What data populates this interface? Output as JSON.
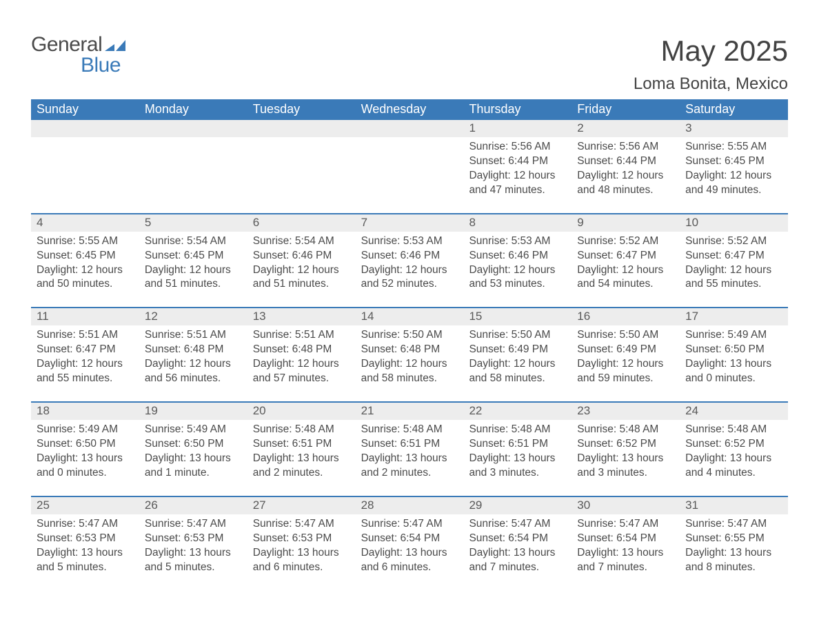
{
  "brand": {
    "name_part1": "General",
    "name_part2": "Blue"
  },
  "title": "May 2025",
  "location": "Loma Bonita, Mexico",
  "colors": {
    "header_bg": "#3a7ab8",
    "header_text": "#ffffff",
    "daynum_bg": "#ededed",
    "text": "#4a4a4a",
    "rule": "#3a7ab8",
    "background": "#ffffff"
  },
  "fonts": {
    "title_size_pt": 32,
    "location_size_pt": 18,
    "weekday_size_pt": 14,
    "body_size_pt": 12
  },
  "weekdays": [
    "Sunday",
    "Monday",
    "Tuesday",
    "Wednesday",
    "Thursday",
    "Friday",
    "Saturday"
  ],
  "weeks": [
    [
      {
        "empty": true
      },
      {
        "empty": true
      },
      {
        "empty": true
      },
      {
        "empty": true
      },
      {
        "day": "1",
        "sunrise": "Sunrise: 5:56 AM",
        "sunset": "Sunset: 6:44 PM",
        "daylight1": "Daylight: 12 hours",
        "daylight2": "and 47 minutes."
      },
      {
        "day": "2",
        "sunrise": "Sunrise: 5:56 AM",
        "sunset": "Sunset: 6:44 PM",
        "daylight1": "Daylight: 12 hours",
        "daylight2": "and 48 minutes."
      },
      {
        "day": "3",
        "sunrise": "Sunrise: 5:55 AM",
        "sunset": "Sunset: 6:45 PM",
        "daylight1": "Daylight: 12 hours",
        "daylight2": "and 49 minutes."
      }
    ],
    [
      {
        "day": "4",
        "sunrise": "Sunrise: 5:55 AM",
        "sunset": "Sunset: 6:45 PM",
        "daylight1": "Daylight: 12 hours",
        "daylight2": "and 50 minutes."
      },
      {
        "day": "5",
        "sunrise": "Sunrise: 5:54 AM",
        "sunset": "Sunset: 6:45 PM",
        "daylight1": "Daylight: 12 hours",
        "daylight2": "and 51 minutes."
      },
      {
        "day": "6",
        "sunrise": "Sunrise: 5:54 AM",
        "sunset": "Sunset: 6:46 PM",
        "daylight1": "Daylight: 12 hours",
        "daylight2": "and 51 minutes."
      },
      {
        "day": "7",
        "sunrise": "Sunrise: 5:53 AM",
        "sunset": "Sunset: 6:46 PM",
        "daylight1": "Daylight: 12 hours",
        "daylight2": "and 52 minutes."
      },
      {
        "day": "8",
        "sunrise": "Sunrise: 5:53 AM",
        "sunset": "Sunset: 6:46 PM",
        "daylight1": "Daylight: 12 hours",
        "daylight2": "and 53 minutes."
      },
      {
        "day": "9",
        "sunrise": "Sunrise: 5:52 AM",
        "sunset": "Sunset: 6:47 PM",
        "daylight1": "Daylight: 12 hours",
        "daylight2": "and 54 minutes."
      },
      {
        "day": "10",
        "sunrise": "Sunrise: 5:52 AM",
        "sunset": "Sunset: 6:47 PM",
        "daylight1": "Daylight: 12 hours",
        "daylight2": "and 55 minutes."
      }
    ],
    [
      {
        "day": "11",
        "sunrise": "Sunrise: 5:51 AM",
        "sunset": "Sunset: 6:47 PM",
        "daylight1": "Daylight: 12 hours",
        "daylight2": "and 55 minutes."
      },
      {
        "day": "12",
        "sunrise": "Sunrise: 5:51 AM",
        "sunset": "Sunset: 6:48 PM",
        "daylight1": "Daylight: 12 hours",
        "daylight2": "and 56 minutes."
      },
      {
        "day": "13",
        "sunrise": "Sunrise: 5:51 AM",
        "sunset": "Sunset: 6:48 PM",
        "daylight1": "Daylight: 12 hours",
        "daylight2": "and 57 minutes."
      },
      {
        "day": "14",
        "sunrise": "Sunrise: 5:50 AM",
        "sunset": "Sunset: 6:48 PM",
        "daylight1": "Daylight: 12 hours",
        "daylight2": "and 58 minutes."
      },
      {
        "day": "15",
        "sunrise": "Sunrise: 5:50 AM",
        "sunset": "Sunset: 6:49 PM",
        "daylight1": "Daylight: 12 hours",
        "daylight2": "and 58 minutes."
      },
      {
        "day": "16",
        "sunrise": "Sunrise: 5:50 AM",
        "sunset": "Sunset: 6:49 PM",
        "daylight1": "Daylight: 12 hours",
        "daylight2": "and 59 minutes."
      },
      {
        "day": "17",
        "sunrise": "Sunrise: 5:49 AM",
        "sunset": "Sunset: 6:50 PM",
        "daylight1": "Daylight: 13 hours",
        "daylight2": "and 0 minutes."
      }
    ],
    [
      {
        "day": "18",
        "sunrise": "Sunrise: 5:49 AM",
        "sunset": "Sunset: 6:50 PM",
        "daylight1": "Daylight: 13 hours",
        "daylight2": "and 0 minutes."
      },
      {
        "day": "19",
        "sunrise": "Sunrise: 5:49 AM",
        "sunset": "Sunset: 6:50 PM",
        "daylight1": "Daylight: 13 hours",
        "daylight2": "and 1 minute."
      },
      {
        "day": "20",
        "sunrise": "Sunrise: 5:48 AM",
        "sunset": "Sunset: 6:51 PM",
        "daylight1": "Daylight: 13 hours",
        "daylight2": "and 2 minutes."
      },
      {
        "day": "21",
        "sunrise": "Sunrise: 5:48 AM",
        "sunset": "Sunset: 6:51 PM",
        "daylight1": "Daylight: 13 hours",
        "daylight2": "and 2 minutes."
      },
      {
        "day": "22",
        "sunrise": "Sunrise: 5:48 AM",
        "sunset": "Sunset: 6:51 PM",
        "daylight1": "Daylight: 13 hours",
        "daylight2": "and 3 minutes."
      },
      {
        "day": "23",
        "sunrise": "Sunrise: 5:48 AM",
        "sunset": "Sunset: 6:52 PM",
        "daylight1": "Daylight: 13 hours",
        "daylight2": "and 3 minutes."
      },
      {
        "day": "24",
        "sunrise": "Sunrise: 5:48 AM",
        "sunset": "Sunset: 6:52 PM",
        "daylight1": "Daylight: 13 hours",
        "daylight2": "and 4 minutes."
      }
    ],
    [
      {
        "day": "25",
        "sunrise": "Sunrise: 5:47 AM",
        "sunset": "Sunset: 6:53 PM",
        "daylight1": "Daylight: 13 hours",
        "daylight2": "and 5 minutes."
      },
      {
        "day": "26",
        "sunrise": "Sunrise: 5:47 AM",
        "sunset": "Sunset: 6:53 PM",
        "daylight1": "Daylight: 13 hours",
        "daylight2": "and 5 minutes."
      },
      {
        "day": "27",
        "sunrise": "Sunrise: 5:47 AM",
        "sunset": "Sunset: 6:53 PM",
        "daylight1": "Daylight: 13 hours",
        "daylight2": "and 6 minutes."
      },
      {
        "day": "28",
        "sunrise": "Sunrise: 5:47 AM",
        "sunset": "Sunset: 6:54 PM",
        "daylight1": "Daylight: 13 hours",
        "daylight2": "and 6 minutes."
      },
      {
        "day": "29",
        "sunrise": "Sunrise: 5:47 AM",
        "sunset": "Sunset: 6:54 PM",
        "daylight1": "Daylight: 13 hours",
        "daylight2": "and 7 minutes."
      },
      {
        "day": "30",
        "sunrise": "Sunrise: 5:47 AM",
        "sunset": "Sunset: 6:54 PM",
        "daylight1": "Daylight: 13 hours",
        "daylight2": "and 7 minutes."
      },
      {
        "day": "31",
        "sunrise": "Sunrise: 5:47 AM",
        "sunset": "Sunset: 6:55 PM",
        "daylight1": "Daylight: 13 hours",
        "daylight2": "and 8 minutes."
      }
    ]
  ]
}
